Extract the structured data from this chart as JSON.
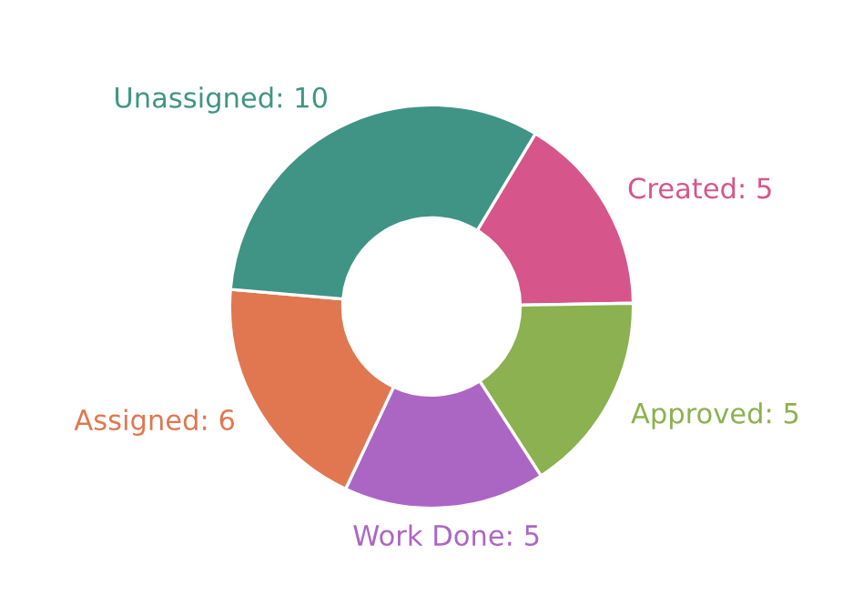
{
  "chart_data": {
    "type": "donut",
    "categories": [
      "Created: 5",
      "Approved: 5",
      "Work Done: 5",
      "Assigned: 6",
      "Unassigned: 10"
    ],
    "values": [
      5,
      5,
      5,
      6,
      10
    ],
    "colors": [
      "#d6558a",
      "#8bb150",
      "#ab66c4",
      "#e07750",
      "#3f9485"
    ]
  }
}
